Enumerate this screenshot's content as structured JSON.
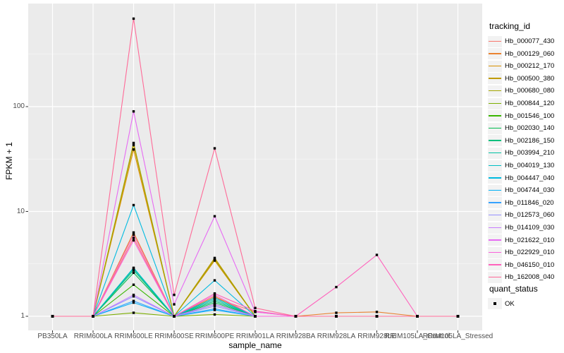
{
  "chart_data": {
    "type": "line",
    "title": "",
    "xlabel": "sample_name",
    "ylabel": "FPKM + 1",
    "y_scale": "log10",
    "y_ticks": [
      1,
      10,
      100
    ],
    "y_tick_labels": [
      "1",
      "10",
      "100"
    ],
    "y_minor_ticks": [
      3.162,
      31.62,
      316.2
    ],
    "ylim": [
      0.73,
      950
    ],
    "grid": true,
    "panel_bg": "#EBEBEB",
    "grid_major_color": "#FFFFFF",
    "grid_minor_color": "#F5F5F5",
    "tick_color": "#333333",
    "point_color": "#000000",
    "legend_position": "right",
    "legend_title": "tracking_id",
    "categories": [
      "PB350LA",
      "RRIM600LA",
      "RRIM600LE",
      "RRIM600SE",
      "RRIM600PE",
      "RRIM901LA",
      "RRIM928BA",
      "RRIM928LA",
      "RRIM928LE",
      "RRIM105LA_Control",
      "RRIM105LA_Stressed"
    ],
    "series": [
      {
        "name": "Hb_000077_430",
        "color": "#F8766D",
        "values": [
          1,
          1,
          5.6,
          1,
          1.5,
          1.1,
          1,
          1,
          1,
          1,
          1
        ]
      },
      {
        "name": "Hb_000129_060",
        "color": "#EA8331",
        "values": [
          1,
          1,
          6.3,
          1,
          1.55,
          1,
          1,
          1.08,
          1.1,
          1,
          1
        ]
      },
      {
        "name": "Hb_000212_170",
        "color": "#D89000",
        "values": [
          1,
          1,
          39,
          1,
          3.4,
          1,
          1,
          1,
          1,
          1,
          1
        ]
      },
      {
        "name": "Hb_000500_380",
        "color": "#C09B00",
        "values": [
          1,
          1,
          43,
          1,
          3.6,
          1,
          1,
          1,
          1,
          1,
          1
        ]
      },
      {
        "name": "Hb_000680_080",
        "color": "#A3A500",
        "values": [
          1,
          1,
          45,
          1,
          3.5,
          1,
          1,
          1,
          1,
          1,
          1
        ]
      },
      {
        "name": "Hb_000844_120",
        "color": "#7CAE00",
        "values": [
          1,
          1,
          1.08,
          1,
          1.04,
          1,
          1,
          1,
          1,
          1,
          1
        ]
      },
      {
        "name": "Hb_001546_100",
        "color": "#39B600",
        "values": [
          1,
          1,
          2.0,
          1,
          1.3,
          1,
          1,
          1,
          1,
          1,
          1
        ]
      },
      {
        "name": "Hb_002030_140",
        "color": "#00BB4E",
        "values": [
          1,
          1,
          2.6,
          1,
          1.35,
          1,
          1,
          1,
          1,
          1,
          1
        ]
      },
      {
        "name": "Hb_002186_150",
        "color": "#00BF7D",
        "values": [
          1,
          1,
          2.75,
          1,
          1.4,
          1,
          1,
          1,
          1,
          1,
          1
        ]
      },
      {
        "name": "Hb_003994_210",
        "color": "#00C1A3",
        "values": [
          1,
          1,
          2.85,
          1,
          1.45,
          1,
          1,
          1,
          1,
          1,
          1
        ]
      },
      {
        "name": "Hb_004019_130",
        "color": "#00BFC4",
        "values": [
          1,
          1,
          2.9,
          1,
          1.5,
          1,
          1,
          1,
          1,
          1,
          1
        ]
      },
      {
        "name": "Hb_004447_040",
        "color": "#00BAE0",
        "values": [
          1,
          1,
          11.5,
          1,
          2.2,
          1,
          1,
          1,
          1,
          1,
          1
        ]
      },
      {
        "name": "Hb_004744_030",
        "color": "#00B0F6",
        "values": [
          1,
          1,
          1.35,
          1,
          1.15,
          1,
          1,
          1,
          1,
          1,
          1
        ]
      },
      {
        "name": "Hb_011846_020",
        "color": "#35A2FF",
        "values": [
          1,
          1,
          1.4,
          1,
          1.18,
          1,
          1,
          1,
          1,
          1,
          1
        ]
      },
      {
        "name": "Hb_012573_060",
        "color": "#9590FF",
        "values": [
          1,
          1,
          1.55,
          1,
          1.25,
          1,
          1,
          1,
          1,
          1,
          1
        ]
      },
      {
        "name": "Hb_014109_030",
        "color": "#C77CFF",
        "values": [
          1,
          1,
          1.6,
          1,
          1.3,
          1,
          1,
          1,
          1,
          1,
          1
        ]
      },
      {
        "name": "Hb_021622_010",
        "color": "#E76BF3",
        "values": [
          1,
          1,
          90,
          1.3,
          9,
          1.1,
          1,
          1,
          1,
          1,
          1
        ]
      },
      {
        "name": "Hb_022929_010",
        "color": "#FA62DB",
        "values": [
          1,
          1,
          5.3,
          1,
          1.6,
          1,
          1,
          1,
          1,
          1,
          1
        ]
      },
      {
        "name": "Hb_046150_010",
        "color": "#FF62BC",
        "values": [
          1,
          1,
          6.0,
          1,
          1.65,
          1.12,
          1,
          1.9,
          3.85,
          1,
          1
        ]
      },
      {
        "name": "Hb_162008_040",
        "color": "#FF6A98",
        "values": [
          1,
          1,
          690,
          1.6,
          40,
          1.2,
          1,
          1,
          1,
          1,
          1
        ]
      }
    ],
    "legend2": {
      "title": "quant_status",
      "items": [
        {
          "label": "OK",
          "marker": "black-square"
        }
      ]
    }
  }
}
